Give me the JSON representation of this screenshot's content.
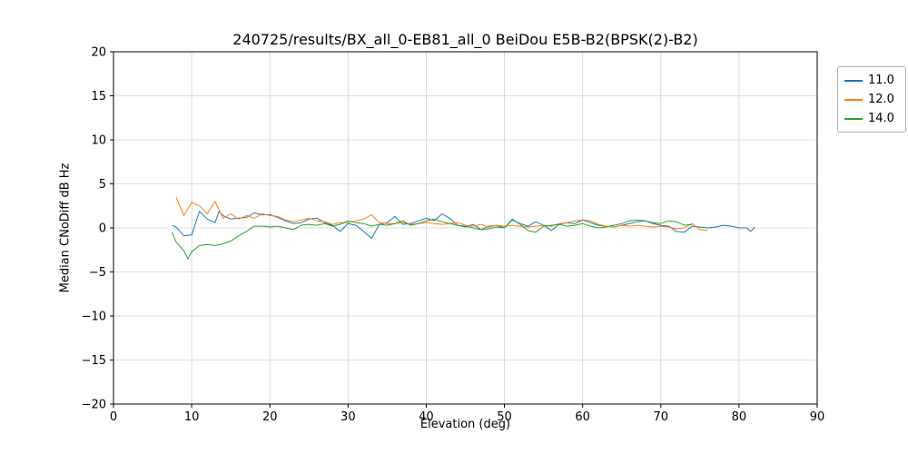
{
  "chart_data": {
    "type": "line",
    "title": "240725/results/BX_all_0-EB81_all_0 BeiDou E5B-B2(BPSK(2)-B2)",
    "xlabel": "Elevation (deg)",
    "ylabel": "Median CNoDiff dB Hz",
    "xlim": [
      0,
      90
    ],
    "ylim": [
      -20,
      20
    ],
    "xticks": [
      0,
      10,
      20,
      30,
      40,
      50,
      60,
      70,
      80,
      90
    ],
    "yticks": [
      -20,
      -15,
      -10,
      -5,
      0,
      5,
      10,
      15,
      20
    ],
    "grid": true,
    "legend_position": "outside-top-right",
    "series": [
      {
        "name": "11.0",
        "color": "#1f77b4",
        "points": [
          [
            7.5,
            0.3
          ],
          [
            8,
            0.1
          ],
          [
            9,
            -0.9
          ],
          [
            10,
            -0.8
          ],
          [
            11,
            1.9
          ],
          [
            12,
            1.0
          ],
          [
            13,
            0.6
          ],
          [
            13.5,
            1.9
          ],
          [
            14,
            1.4
          ],
          [
            15,
            1.0
          ],
          [
            16,
            1.1
          ],
          [
            17,
            1.2
          ],
          [
            18,
            1.7
          ],
          [
            19,
            1.5
          ],
          [
            20,
            1.5
          ],
          [
            21,
            1.2
          ],
          [
            22,
            0.8
          ],
          [
            23,
            0.5
          ],
          [
            24,
            0.6
          ],
          [
            25,
            1.0
          ],
          [
            26,
            1.1
          ],
          [
            27,
            0.6
          ],
          [
            28,
            0.3
          ],
          [
            29,
            -0.4
          ],
          [
            30,
            0.5
          ],
          [
            31,
            0.3
          ],
          [
            32,
            -0.4
          ],
          [
            33,
            -1.2
          ],
          [
            34,
            0.4
          ],
          [
            35,
            0.6
          ],
          [
            36,
            1.3
          ],
          [
            37,
            0.4
          ],
          [
            38,
            0.5
          ],
          [
            39,
            0.8
          ],
          [
            40,
            1.1
          ],
          [
            41,
            0.8
          ],
          [
            42,
            1.6
          ],
          [
            43,
            1.1
          ],
          [
            44,
            0.3
          ],
          [
            45,
            0.1
          ],
          [
            46,
            0.4
          ],
          [
            47,
            -0.2
          ],
          [
            48,
            0.2
          ],
          [
            49,
            0.3
          ],
          [
            50,
            0.0
          ],
          [
            51,
            0.9
          ],
          [
            52,
            0.5
          ],
          [
            53,
            0.2
          ],
          [
            54,
            0.7
          ],
          [
            55,
            0.3
          ],
          [
            56,
            -0.3
          ],
          [
            57,
            0.4
          ],
          [
            58,
            0.6
          ],
          [
            59,
            0.5
          ],
          [
            60,
            0.9
          ],
          [
            61,
            0.6
          ],
          [
            62,
            0.3
          ],
          [
            63,
            0.2
          ],
          [
            64,
            0.1
          ],
          [
            65,
            0.3
          ],
          [
            66,
            0.5
          ],
          [
            67,
            0.7
          ],
          [
            68,
            0.8
          ],
          [
            69,
            0.5
          ],
          [
            70,
            0.3
          ],
          [
            71,
            0.2
          ],
          [
            72,
            -0.4
          ],
          [
            73,
            -0.5
          ],
          [
            74,
            0.2
          ],
          [
            75,
            0.1
          ],
          [
            76,
            0.0
          ],
          [
            77,
            0.1
          ],
          [
            78,
            0.3
          ],
          [
            79,
            0.2
          ],
          [
            80,
            0.0
          ],
          [
            81,
            0.0
          ],
          [
            81.5,
            -0.4
          ],
          [
            82,
            0.1
          ]
        ]
      },
      {
        "name": "12.0",
        "color": "#ff7f0e",
        "points": [
          [
            8,
            3.5
          ],
          [
            9,
            1.4
          ],
          [
            10,
            2.9
          ],
          [
            11,
            2.5
          ],
          [
            12,
            1.6
          ],
          [
            13,
            3.0
          ],
          [
            14,
            1.1
          ],
          [
            15,
            1.6
          ],
          [
            16,
            1.0
          ],
          [
            17,
            1.4
          ],
          [
            18,
            1.1
          ],
          [
            19,
            1.6
          ],
          [
            20,
            1.4
          ],
          [
            21,
            1.3
          ],
          [
            22,
            0.9
          ],
          [
            23,
            0.7
          ],
          [
            24,
            0.9
          ],
          [
            25,
            1.1
          ],
          [
            26,
            0.8
          ],
          [
            27,
            0.7
          ],
          [
            28,
            0.4
          ],
          [
            29,
            0.6
          ],
          [
            30,
            0.6
          ],
          [
            31,
            0.8
          ],
          [
            32,
            1.0
          ],
          [
            33,
            1.5
          ],
          [
            34,
            0.6
          ],
          [
            35,
            0.5
          ],
          [
            36,
            0.5
          ],
          [
            37,
            0.6
          ],
          [
            38,
            0.4
          ],
          [
            39,
            0.5
          ],
          [
            40,
            0.6
          ],
          [
            41,
            0.5
          ],
          [
            42,
            0.4
          ],
          [
            43,
            0.5
          ],
          [
            44,
            0.6
          ],
          [
            45,
            0.3
          ],
          [
            46,
            0.2
          ],
          [
            47,
            0.4
          ],
          [
            48,
            0.1
          ],
          [
            49,
            0.3
          ],
          [
            50,
            0.2
          ],
          [
            51,
            0.3
          ],
          [
            52,
            0.2
          ],
          [
            53,
            0.1
          ],
          [
            54,
            0.2
          ],
          [
            55,
            0.3
          ],
          [
            56,
            0.2
          ],
          [
            57,
            0.5
          ],
          [
            58,
            0.6
          ],
          [
            59,
            0.8
          ],
          [
            60,
            0.9
          ],
          [
            61,
            0.8
          ],
          [
            62,
            0.4
          ],
          [
            63,
            0.2
          ],
          [
            64,
            0.1
          ],
          [
            65,
            0.3
          ],
          [
            66,
            0.2
          ],
          [
            67,
            0.3
          ],
          [
            68,
            0.2
          ],
          [
            69,
            0.1
          ],
          [
            70,
            0.2
          ],
          [
            71,
            0.1
          ],
          [
            72,
            -0.1
          ],
          [
            73,
            0.0
          ],
          [
            74,
            0.5
          ],
          [
            75,
            -0.2
          ],
          [
            76,
            -0.3
          ]
        ]
      },
      {
        "name": "14.0",
        "color": "#2ca02c",
        "points": [
          [
            7.5,
            -0.5
          ],
          [
            8,
            -1.6
          ],
          [
            9,
            -2.6
          ],
          [
            9.5,
            -3.5
          ],
          [
            10,
            -2.7
          ],
          [
            11,
            -2.0
          ],
          [
            12,
            -1.9
          ],
          [
            13,
            -2.0
          ],
          [
            14,
            -1.8
          ],
          [
            15,
            -1.5
          ],
          [
            16,
            -0.9
          ],
          [
            17,
            -0.4
          ],
          [
            18,
            0.2
          ],
          [
            19,
            0.2
          ],
          [
            20,
            0.1
          ],
          [
            21,
            0.2
          ],
          [
            22,
            0.0
          ],
          [
            23,
            -0.2
          ],
          [
            24,
            0.3
          ],
          [
            25,
            0.4
          ],
          [
            26,
            0.3
          ],
          [
            27,
            0.5
          ],
          [
            28,
            0.2
          ],
          [
            29,
            0.4
          ],
          [
            30,
            0.8
          ],
          [
            31,
            0.6
          ],
          [
            32,
            0.5
          ],
          [
            33,
            0.2
          ],
          [
            34,
            0.4
          ],
          [
            35,
            0.3
          ],
          [
            36,
            0.5
          ],
          [
            37,
            0.8
          ],
          [
            38,
            0.3
          ],
          [
            39,
            0.5
          ],
          [
            40,
            0.8
          ],
          [
            41,
            1.0
          ],
          [
            42,
            0.7
          ],
          [
            43,
            0.5
          ],
          [
            44,
            0.3
          ],
          [
            45,
            0.2
          ],
          [
            46,
            0.0
          ],
          [
            47,
            -0.2
          ],
          [
            48,
            -0.1
          ],
          [
            49,
            0.1
          ],
          [
            50,
            0.0
          ],
          [
            51,
            1.0
          ],
          [
            52,
            0.4
          ],
          [
            53,
            -0.3
          ],
          [
            54,
            -0.5
          ],
          [
            55,
            0.2
          ],
          [
            56,
            0.3
          ],
          [
            57,
            0.4
          ],
          [
            58,
            0.2
          ],
          [
            59,
            0.3
          ],
          [
            60,
            0.5
          ],
          [
            61,
            0.2
          ],
          [
            62,
            0.0
          ],
          [
            63,
            0.1
          ],
          [
            64,
            0.3
          ],
          [
            65,
            0.5
          ],
          [
            66,
            0.8
          ],
          [
            67,
            0.9
          ],
          [
            68,
            0.8
          ],
          [
            69,
            0.6
          ],
          [
            70,
            0.5
          ],
          [
            71,
            0.8
          ],
          [
            72,
            0.7
          ],
          [
            73,
            0.3
          ],
          [
            74,
            0.4
          ]
        ]
      }
    ]
  }
}
